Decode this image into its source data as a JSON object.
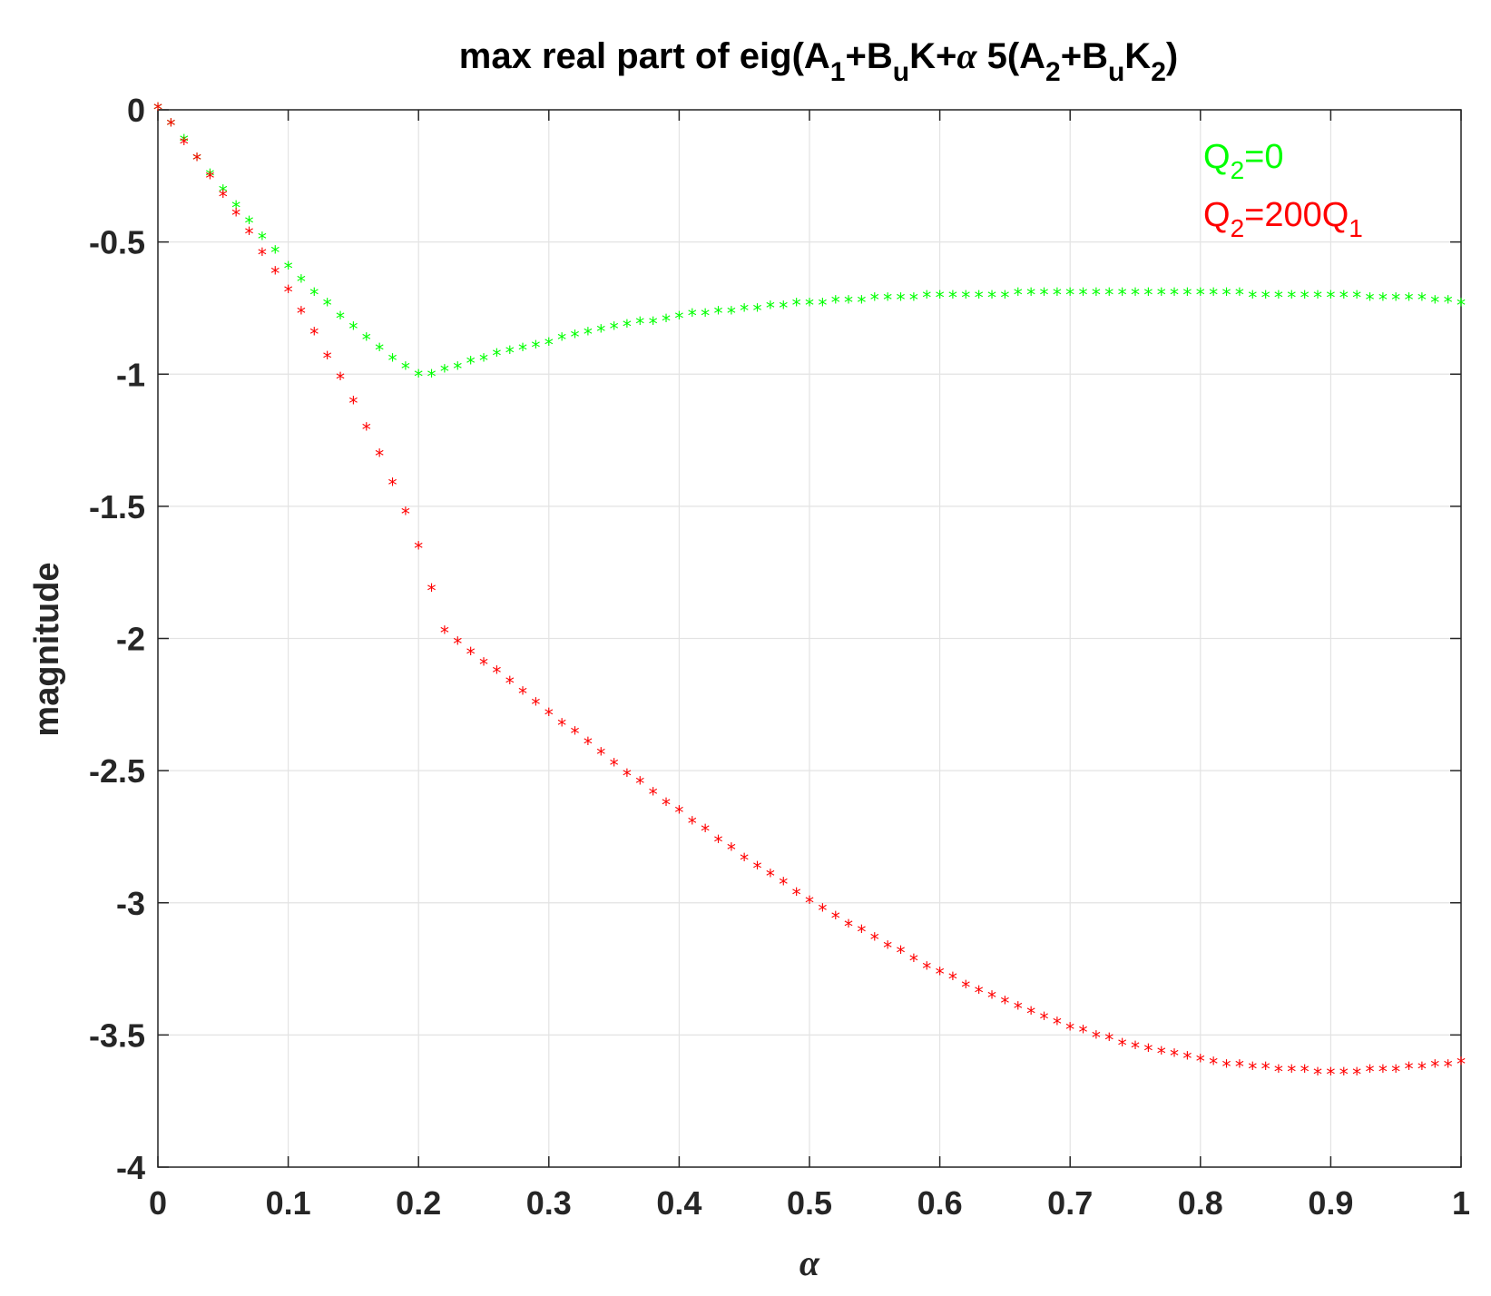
{
  "chart_data": {
    "type": "scatter",
    "title_parts": [
      "max real part of eig(A",
      "1",
      "+B",
      "u",
      "K+",
      "α",
      " 5(A",
      "2",
      "+B",
      "u",
      "K",
      "2",
      ")"
    ],
    "xlabel": "α",
    "ylabel": "magnitude",
    "xlim": [
      0,
      1
    ],
    "ylim": [
      -4,
      0
    ],
    "xticks": [
      "0",
      "0.1",
      "0.2",
      "0.3",
      "0.4",
      "0.5",
      "0.6",
      "0.7",
      "0.8",
      "0.9",
      "1"
    ],
    "yticks": [
      "0",
      "-0.5",
      "-1",
      "-1.5",
      "-2",
      "-2.5",
      "-3",
      "-3.5",
      "-4"
    ],
    "grid": true,
    "legend_position": "top-right",
    "marker": "*",
    "x": [
      0,
      0.01,
      0.02,
      0.03,
      0.04,
      0.05,
      0.06,
      0.07,
      0.08,
      0.09,
      0.1,
      0.11,
      0.12,
      0.13,
      0.14,
      0.15,
      0.16,
      0.17,
      0.18,
      0.19,
      0.2,
      0.21,
      0.22,
      0.23,
      0.24,
      0.25,
      0.26,
      0.27,
      0.28,
      0.29,
      0.3,
      0.31,
      0.32,
      0.33,
      0.34,
      0.35,
      0.36,
      0.37,
      0.38,
      0.39,
      0.4,
      0.41,
      0.42,
      0.43,
      0.44,
      0.45,
      0.46,
      0.47,
      0.48,
      0.49,
      0.5,
      0.51,
      0.52,
      0.53,
      0.54,
      0.55,
      0.56,
      0.57,
      0.58,
      0.59,
      0.6,
      0.61,
      0.62,
      0.63,
      0.64,
      0.65,
      0.66,
      0.67,
      0.68,
      0.69,
      0.7,
      0.71,
      0.72,
      0.73,
      0.74,
      0.75,
      0.76,
      0.77,
      0.78,
      0.79,
      0.8,
      0.81,
      0.82,
      0.83,
      0.84,
      0.85,
      0.86,
      0.87,
      0.88,
      0.89,
      0.9,
      0.91,
      0.92,
      0.93,
      0.94,
      0.95,
      0.96,
      0.97,
      0.98,
      0.99,
      1
    ],
    "series": [
      {
        "name_parts": [
          "Q",
          "2",
          "=0"
        ],
        "color": "#00ff00",
        "values": [
          0,
          -0.06,
          -0.12,
          -0.19,
          -0.25,
          -0.31,
          -0.37,
          -0.43,
          -0.49,
          -0.54,
          -0.6,
          -0.65,
          -0.7,
          -0.74,
          -0.79,
          -0.83,
          -0.87,
          -0.91,
          -0.95,
          -0.98,
          -1.01,
          -1.01,
          -0.99,
          -0.98,
          -0.96,
          -0.95,
          -0.93,
          -0.92,
          -0.91,
          -0.9,
          -0.89,
          -0.87,
          -0.86,
          -0.85,
          -0.84,
          -0.83,
          -0.82,
          -0.81,
          -0.81,
          -0.8,
          -0.79,
          -0.78,
          -0.78,
          -0.77,
          -0.77,
          -0.76,
          -0.76,
          -0.75,
          -0.75,
          -0.74,
          -0.74,
          -0.74,
          -0.73,
          -0.73,
          -0.73,
          -0.72,
          -0.72,
          -0.72,
          -0.72,
          -0.71,
          -0.71,
          -0.71,
          -0.71,
          -0.71,
          -0.71,
          -0.71,
          -0.7,
          -0.7,
          -0.7,
          -0.7,
          -0.7,
          -0.7,
          -0.7,
          -0.7,
          -0.7,
          -0.7,
          -0.7,
          -0.7,
          -0.7,
          -0.7,
          -0.7,
          -0.7,
          -0.7,
          -0.7,
          -0.71,
          -0.71,
          -0.71,
          -0.71,
          -0.71,
          -0.71,
          -0.71,
          -0.71,
          -0.71,
          -0.72,
          -0.72,
          -0.72,
          -0.72,
          -0.72,
          -0.73,
          -0.73,
          -0.74
        ]
      },
      {
        "name_parts": [
          "Q",
          "2",
          "=200Q",
          "1"
        ],
        "color": "#ff0000",
        "values": [
          0,
          -0.06,
          -0.13,
          -0.19,
          -0.26,
          -0.33,
          -0.4,
          -0.47,
          -0.55,
          -0.62,
          -0.69,
          -0.77,
          -0.85,
          -0.94,
          -1.02,
          -1.11,
          -1.21,
          -1.31,
          -1.42,
          -1.53,
          -1.66,
          -1.82,
          -1.98,
          -2.02,
          -2.06,
          -2.1,
          -2.13,
          -2.17,
          -2.21,
          -2.25,
          -2.29,
          -2.33,
          -2.36,
          -2.4,
          -2.44,
          -2.48,
          -2.52,
          -2.55,
          -2.59,
          -2.63,
          -2.66,
          -2.7,
          -2.73,
          -2.77,
          -2.8,
          -2.84,
          -2.87,
          -2.9,
          -2.93,
          -2.97,
          -3,
          -3.03,
          -3.06,
          -3.09,
          -3.11,
          -3.14,
          -3.17,
          -3.19,
          -3.22,
          -3.25,
          -3.27,
          -3.29,
          -3.32,
          -3.34,
          -3.36,
          -3.38,
          -3.4,
          -3.42,
          -3.44,
          -3.46,
          -3.48,
          -3.49,
          -3.51,
          -3.52,
          -3.54,
          -3.55,
          -3.56,
          -3.57,
          -3.58,
          -3.59,
          -3.6,
          -3.61,
          -3.62,
          -3.62,
          -3.63,
          -3.63,
          -3.64,
          -3.64,
          -3.64,
          -3.65,
          -3.65,
          -3.65,
          -3.65,
          -3.64,
          -3.64,
          -3.64,
          -3.63,
          -3.63,
          -3.62,
          -3.62,
          -3.61
        ]
      }
    ]
  }
}
